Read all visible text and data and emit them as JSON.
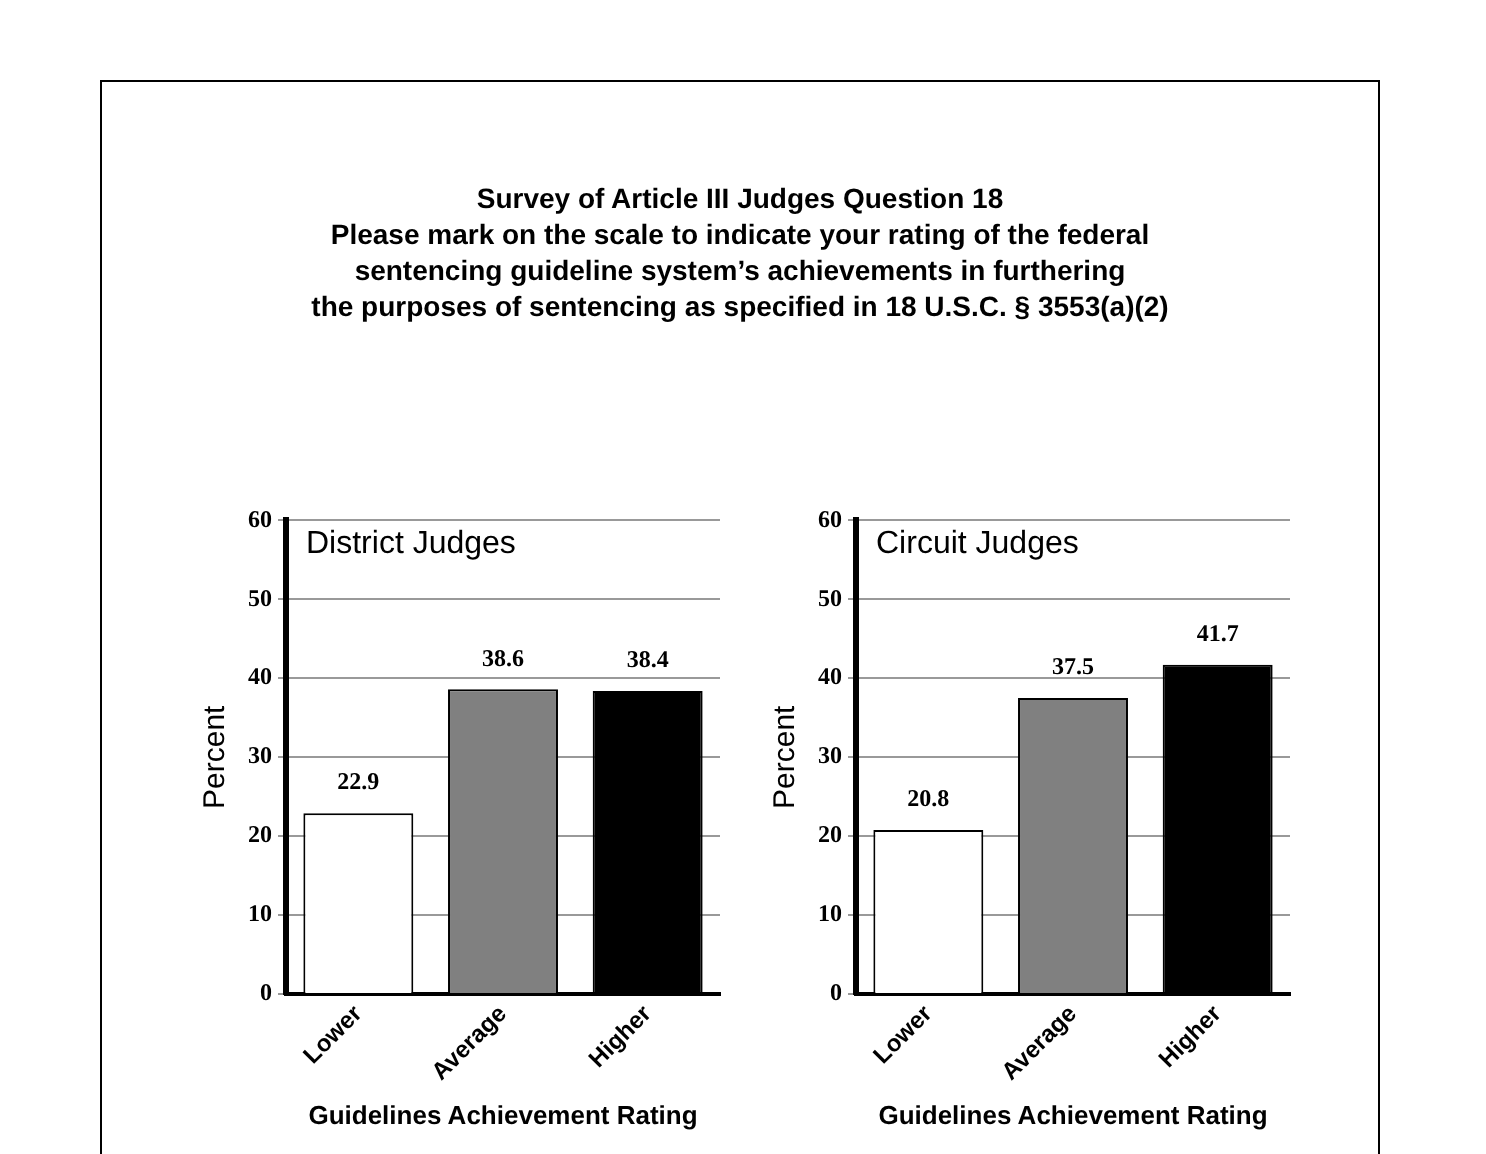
{
  "chart_data": [
    {
      "type": "bar",
      "title": "Survey of Article III Judges Question 18\nPlease mark on the scale to indicate your rating of the federal\nsentencing guideline system’s achievements in furthering\nthe purposes of sentencing as specified in 18 U.S.C. § 3553(a)(2)",
      "subtitle": "District Judges",
      "xlabel": "Guidelines Achievement Rating",
      "ylabel": "Percent",
      "categories": [
        "Lower",
        "Average",
        "Higher"
      ],
      "values": [
        22.9,
        38.6,
        38.4
      ],
      "colors": [
        "#ffffff",
        "#808080",
        "#000000"
      ],
      "ylim": [
        0,
        60
      ],
      "yticks": [
        0,
        10,
        20,
        30,
        40,
        50,
        60
      ],
      "grid": "y",
      "legend": false,
      "data_labels": true
    },
    {
      "type": "bar",
      "subtitle": "Circuit Judges",
      "xlabel": "Guidelines Achievement Rating",
      "ylabel": "Percent",
      "categories": [
        "Lower",
        "Average",
        "Higher"
      ],
      "values": [
        20.8,
        37.5,
        41.7
      ],
      "colors": [
        "#ffffff",
        "#808080",
        "#000000"
      ],
      "ylim": [
        0,
        60
      ],
      "yticks": [
        0,
        10,
        20,
        30,
        40,
        50,
        60
      ],
      "grid": "y",
      "legend": false,
      "data_labels": true
    }
  ]
}
